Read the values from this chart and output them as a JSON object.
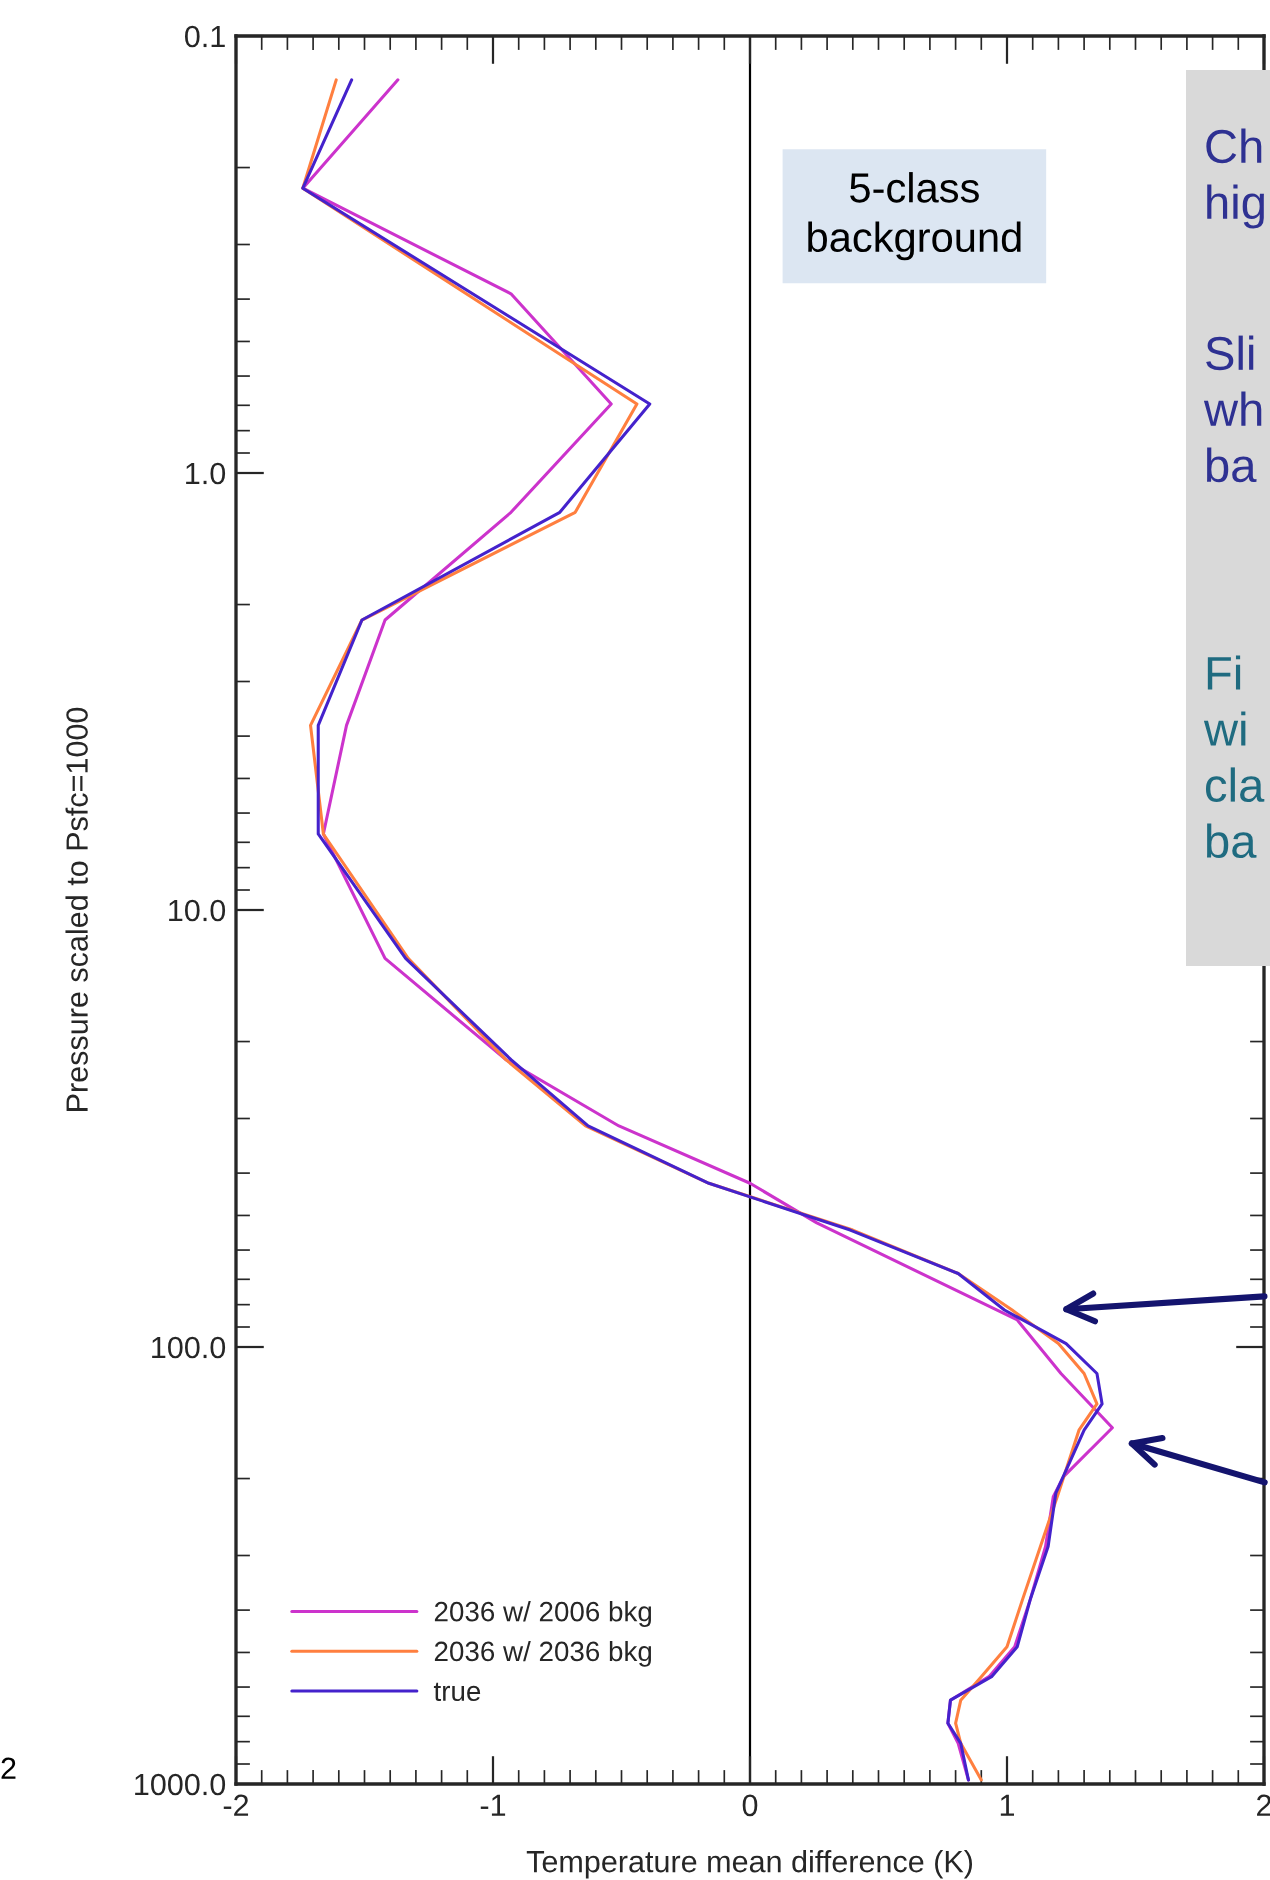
{
  "chart_data": {
    "type": "line",
    "xlabel": "Temperature mean difference (K)",
    "ylabel": "Pressure scaled to Psfc=1000",
    "log": "y",
    "ylim": [
      1000,
      0.1
    ],
    "yticks": [
      {
        "value": 0.1,
        "label": "0.1"
      },
      {
        "value": 1,
        "label": "1.0"
      },
      {
        "value": 10,
        "label": "10.0"
      },
      {
        "value": 100,
        "label": "100.0"
      },
      {
        "value": 1000,
        "label": "1000.0"
      }
    ],
    "xlim": [
      -2,
      2
    ],
    "xticks": [
      -2,
      -1,
      0,
      1,
      2
    ],
    "grid": false,
    "legend": "bottom left",
    "marker": "none",
    "line_style": "solid",
    "series": [
      {
        "name": "2036 w/ 2006 bkg",
        "color": "#cc33cc",
        "x": [
          -1.37,
          -1.74,
          -0.93,
          -0.54,
          -0.93,
          -1.42,
          -1.57,
          -1.66,
          -1.42,
          -0.95,
          -0.51,
          0.0,
          0.26,
          1.04,
          1.21,
          1.41,
          1.22,
          1.18,
          1.15,
          1.09,
          1.03,
          0.93,
          0.78,
          0.77,
          0.81,
          0.85
        ],
        "values": [
          0.126,
          0.223,
          0.389,
          0.695,
          1.23,
          2.17,
          3.78,
          6.7,
          12.9,
          22,
          31.2,
          42.2,
          52,
          86.7,
          115,
          153,
          198,
          220,
          286,
          379,
          485,
          568,
          643,
          726,
          807,
          979
        ]
      },
      {
        "name": "2036 w/ 2036 bkg",
        "color": "#ff7f3f",
        "x": [
          -1.61,
          -1.74,
          -0.44,
          -0.68,
          -1.51,
          -1.71,
          -1.66,
          -1.33,
          -0.95,
          -0.64,
          -0.16,
          0.4,
          0.81,
          1.02,
          1.2,
          1.3,
          1.35,
          1.28,
          1.2,
          1.13,
          1.06,
          1.0,
          0.9,
          0.82,
          0.8,
          0.82,
          0.9
        ],
        "values": [
          0.126,
          0.223,
          0.695,
          1.23,
          2.17,
          3.78,
          6.7,
          12.9,
          22,
          31.2,
          42.2,
          54,
          67.9,
          82.3,
          98.2,
          115,
          135,
          155,
          216,
          286,
          379,
          485,
          568,
          643,
          726,
          807,
          979
        ]
      },
      {
        "name": "true",
        "color": "#4422cc",
        "x": [
          -1.55,
          -1.74,
          -0.39,
          -0.74,
          -1.51,
          -1.68,
          -1.68,
          -1.34,
          -0.93,
          -0.63,
          -0.16,
          0.39,
          0.81,
          0.99,
          1.23,
          1.35,
          1.37,
          1.3,
          1.19,
          1.16,
          1.09,
          1.04,
          0.94,
          0.78,
          0.77,
          0.82,
          0.85
        ],
        "values": [
          0.126,
          0.223,
          0.695,
          1.23,
          2.17,
          3.78,
          6.7,
          12.9,
          22,
          31.2,
          42.2,
          54,
          67.9,
          82.3,
          98.2,
          115,
          135,
          155,
          216,
          286,
          379,
          485,
          568,
          643,
          726,
          807,
          979
        ]
      }
    ],
    "ref_lines": [
      {
        "axis": "x",
        "value": 0,
        "color": "#000000"
      }
    ],
    "annotations": [
      "5-class\nbackground",
      "Ch\nhig",
      "Sli\nwh\nba",
      "Fi\nwi\ncla\nba",
      "2"
    ]
  }
}
